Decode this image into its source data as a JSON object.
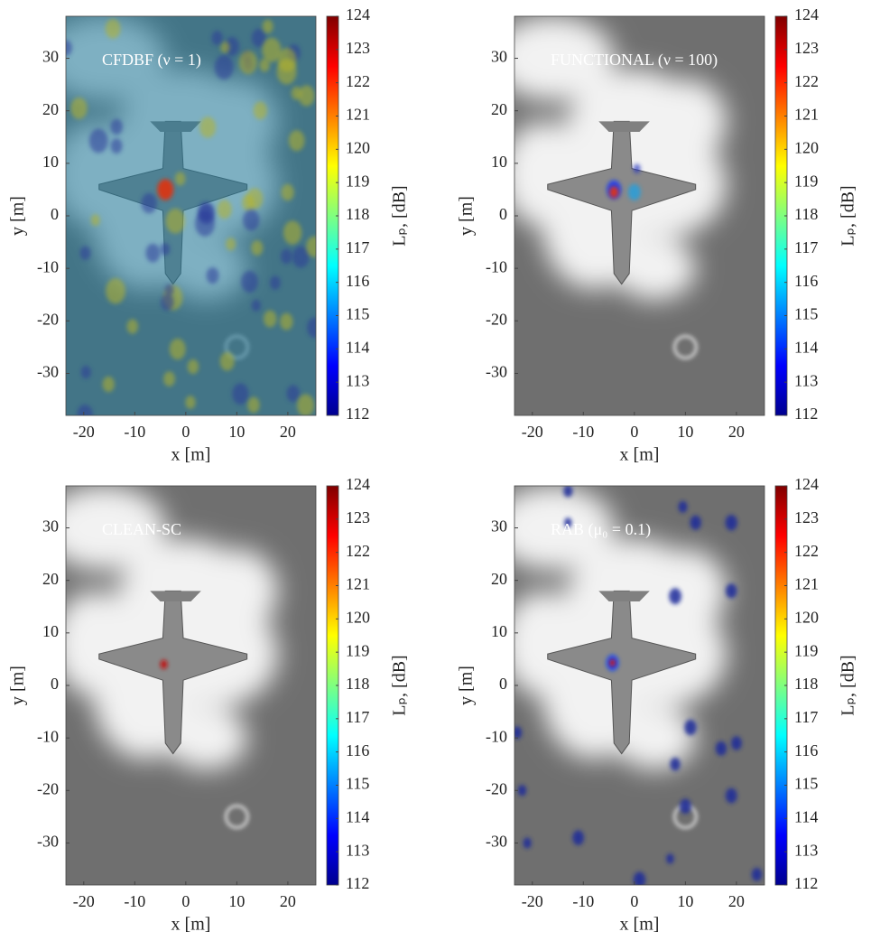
{
  "chart_data": [
    {
      "type": "heatmap",
      "title": "CFDBF (ν = 1)",
      "xlabel": "x [m]",
      "ylabel": "y [m]",
      "colorbar_label": "Lₚ, [dB]",
      "xlim": [
        -23.5,
        25.5
      ],
      "ylim": [
        -38,
        38
      ],
      "xticks": [
        -20,
        -10,
        0,
        10,
        20
      ],
      "yticks": [
        -30,
        -20,
        -10,
        0,
        10,
        20,
        30
      ],
      "clim": [
        112,
        124
      ],
      "cticks": [
        112,
        113,
        114,
        115,
        116,
        117,
        118,
        119,
        120,
        121,
        122,
        123,
        124
      ]
    },
    {
      "type": "heatmap",
      "title": "FUNCTIONAL (ν = 100)",
      "xlabel": "x [m]",
      "ylabel": "y [m]",
      "colorbar_label": "Lₚ, [dB]",
      "xlim": [
        -23.5,
        25.5
      ],
      "ylim": [
        -38,
        38
      ],
      "xticks": [
        -20,
        -10,
        0,
        10,
        20
      ],
      "yticks": [
        -30,
        -20,
        -10,
        0,
        10,
        20,
        30
      ],
      "clim": [
        112,
        124
      ],
      "cticks": [
        112,
        113,
        114,
        115,
        116,
        117,
        118,
        119,
        120,
        121,
        122,
        123,
        124
      ]
    },
    {
      "type": "heatmap",
      "title": "CLEAN-SC",
      "xlabel": "x [m]",
      "ylabel": "y [m]",
      "colorbar_label": "Lₚ, [dB]",
      "xlim": [
        -23.5,
        25.5
      ],
      "ylim": [
        -38,
        38
      ],
      "xticks": [
        -20,
        -10,
        0,
        10,
        20
      ],
      "yticks": [
        -30,
        -20,
        -10,
        0,
        10,
        20,
        30
      ],
      "clim": [
        112,
        124
      ],
      "cticks": [
        112,
        113,
        114,
        115,
        116,
        117,
        118,
        119,
        120,
        121,
        122,
        123,
        124
      ]
    },
    {
      "type": "heatmap",
      "title": "RAB (μ₀ = 0.1)",
      "xlabel": "x [m]",
      "ylabel": "y [m]",
      "colorbar_label": "Lₚ, [dB]",
      "xlim": [
        -23.5,
        25.5
      ],
      "ylim": [
        -38,
        38
      ],
      "xticks": [
        -20,
        -10,
        0,
        10,
        20
      ],
      "yticks": [
        -30,
        -20,
        -10,
        0,
        10,
        20,
        30
      ],
      "clim": [
        112,
        124
      ],
      "cticks": [
        112,
        113,
        114,
        115,
        116,
        117,
        118,
        119,
        120,
        121,
        122,
        123,
        124
      ]
    }
  ]
}
